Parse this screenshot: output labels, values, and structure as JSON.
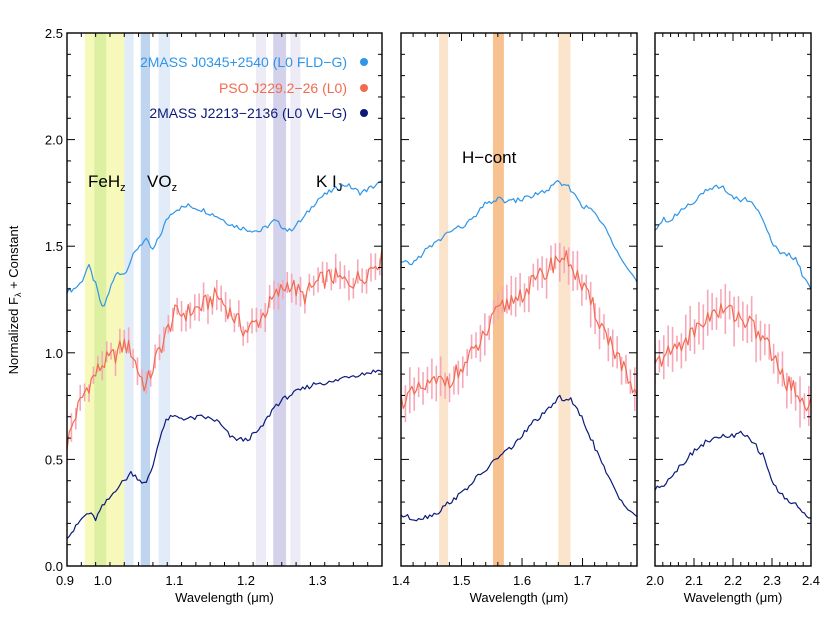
{
  "chart_data": {
    "type": "line",
    "ylabel_main": "Normalized F",
    "ylabel_sub": "λ",
    "ylabel_tail": " + Constant",
    "xlabel_main": "Wavelength (",
    "xlabel_unit": "μm",
    "xlabel_tail": ")",
    "ylim": [
      0.0,
      2.5
    ],
    "yticks": [
      "0.0",
      "0.5",
      "1.0",
      "1.5",
      "2.0",
      "2.5"
    ],
    "series": [
      {
        "name": "2MASS J0345+2540 (L0 FLD−G)",
        "color": "#2f95e8"
      },
      {
        "name": "PSO J229.2−26 (L0)",
        "color": "#f26b4f",
        "error_color": "#f7a8b8"
      },
      {
        "name": "2MASS J2213−2136 (L0 VL−G)",
        "color": "#0c1a7a"
      }
    ],
    "feature_labels": {
      "feh": {
        "main": "FeH",
        "sub": "z"
      },
      "vo": {
        "main": "VO",
        "sub": "z"
      },
      "ki": {
        "main": "K I",
        "sub": "J"
      },
      "hcont": {
        "main": "H−cont"
      }
    },
    "panels": [
      {
        "band": "J",
        "xlim": [
          0.95,
          1.39
        ],
        "xticks": [
          "0.9",
          "1.0",
          "1.1",
          "1.2",
          "1.3"
        ],
        "xtick_values": [
          0.9,
          1.0,
          1.1,
          1.2,
          1.3
        ],
        "bands": [
          {
            "x0": 0.975,
            "x1": 0.988,
            "color": "#f4f7a8",
            "alpha": 0.8
          },
          {
            "x0": 0.988,
            "x1": 1.005,
            "color": "#d7ec8f",
            "alpha": 0.85
          },
          {
            "x0": 1.005,
            "x1": 1.016,
            "color": "#f4f7a8",
            "alpha": 0.8
          },
          {
            "x0": 1.016,
            "x1": 1.03,
            "color": "#f4f7a8",
            "alpha": 0.8
          },
          {
            "x0": 1.03,
            "x1": 1.043,
            "color": "#dfeaf8",
            "alpha": 0.9
          },
          {
            "x0": 1.053,
            "x1": 1.066,
            "color": "#bcd3ee",
            "alpha": 0.95
          },
          {
            "x0": 1.078,
            "x1": 1.094,
            "color": "#dfeaf8",
            "alpha": 0.9
          },
          {
            "x0": 1.214,
            "x1": 1.228,
            "color": "#ecebf6",
            "alpha": 1
          },
          {
            "x0": 1.238,
            "x1": 1.256,
            "color": "#d3d2ea",
            "alpha": 1
          },
          {
            "x0": 1.262,
            "x1": 1.276,
            "color": "#ecebf6",
            "alpha": 1
          }
        ],
        "series": [
          {
            "series_index": 0,
            "x": [
              0.95,
              0.96,
              0.97,
              0.98,
              0.99,
              1.0,
              1.01,
              1.02,
              1.03,
              1.04,
              1.05,
              1.06,
              1.07,
              1.08,
              1.09,
              1.1,
              1.12,
              1.14,
              1.16,
              1.18,
              1.2,
              1.22,
              1.24,
              1.26,
              1.28,
              1.3,
              1.32,
              1.34,
              1.36,
              1.39
            ],
            "y": [
              1.29,
              1.3,
              1.33,
              1.41,
              1.32,
              1.2,
              1.3,
              1.38,
              1.37,
              1.44,
              1.5,
              1.53,
              1.48,
              1.55,
              1.63,
              1.67,
              1.69,
              1.67,
              1.64,
              1.6,
              1.58,
              1.57,
              1.62,
              1.57,
              1.63,
              1.72,
              1.76,
              1.79,
              1.75,
              1.8
            ]
          },
          {
            "series_index": 1,
            "x": [
              0.95,
              0.96,
              0.97,
              0.98,
              0.99,
              1.0,
              1.01,
              1.02,
              1.03,
              1.04,
              1.05,
              1.06,
              1.07,
              1.08,
              1.09,
              1.1,
              1.12,
              1.14,
              1.16,
              1.18,
              1.2,
              1.22,
              1.24,
              1.26,
              1.28,
              1.3,
              1.32,
              1.34,
              1.36,
              1.39
            ],
            "y": [
              0.57,
              0.69,
              0.78,
              0.85,
              0.9,
              0.95,
              0.97,
              1.0,
              1.04,
              1.01,
              0.91,
              0.84,
              0.93,
              1.02,
              1.1,
              1.18,
              1.19,
              1.22,
              1.27,
              1.18,
              1.1,
              1.16,
              1.26,
              1.33,
              1.26,
              1.33,
              1.36,
              1.33,
              1.35,
              1.45
            ],
            "err": 0.06
          },
          {
            "series_index": 2,
            "x": [
              0.95,
              0.96,
              0.97,
              0.98,
              0.99,
              1.0,
              1.01,
              1.02,
              1.03,
              1.04,
              1.05,
              1.06,
              1.07,
              1.08,
              1.09,
              1.1,
              1.12,
              1.14,
              1.16,
              1.18,
              1.2,
              1.22,
              1.24,
              1.26,
              1.28,
              1.3,
              1.32,
              1.34,
              1.36,
              1.39
            ],
            "y": [
              0.14,
              0.17,
              0.22,
              0.25,
              0.22,
              0.28,
              0.32,
              0.37,
              0.4,
              0.44,
              0.41,
              0.38,
              0.47,
              0.61,
              0.69,
              0.7,
              0.69,
              0.7,
              0.68,
              0.6,
              0.59,
              0.64,
              0.75,
              0.8,
              0.83,
              0.86,
              0.86,
              0.89,
              0.9,
              0.92
            ]
          }
        ]
      },
      {
        "band": "H",
        "xlim": [
          1.4,
          1.79
        ],
        "xticks": [
          "1.4",
          "1.5",
          "1.6",
          "1.7"
        ],
        "xtick_values": [
          1.4,
          1.5,
          1.6,
          1.7
        ],
        "bands": [
          {
            "x0": 1.463,
            "x1": 1.478,
            "color": "#fbe4cc",
            "alpha": 1
          },
          {
            "x0": 1.552,
            "x1": 1.57,
            "color": "#f7c190",
            "alpha": 1
          },
          {
            "x0": 1.66,
            "x1": 1.68,
            "color": "#fbe4cc",
            "alpha": 1
          }
        ],
        "series": [
          {
            "series_index": 0,
            "x": [
              1.4,
              1.42,
              1.44,
              1.46,
              1.48,
              1.5,
              1.52,
              1.54,
              1.56,
              1.58,
              1.6,
              1.62,
              1.64,
              1.66,
              1.68,
              1.7,
              1.72,
              1.74,
              1.76,
              1.79
            ],
            "y": [
              1.42,
              1.42,
              1.48,
              1.52,
              1.57,
              1.59,
              1.63,
              1.7,
              1.72,
              1.71,
              1.72,
              1.74,
              1.76,
              1.8,
              1.77,
              1.69,
              1.66,
              1.57,
              1.47,
              1.33
            ]
          },
          {
            "series_index": 1,
            "x": [
              1.4,
              1.42,
              1.44,
              1.46,
              1.48,
              1.5,
              1.52,
              1.54,
              1.56,
              1.58,
              1.6,
              1.62,
              1.64,
              1.66,
              1.68,
              1.7,
              1.72,
              1.74,
              1.76,
              1.79
            ],
            "y": [
              0.78,
              0.8,
              0.84,
              0.86,
              0.88,
              0.92,
              1.0,
              1.09,
              1.19,
              1.24,
              1.28,
              1.33,
              1.38,
              1.45,
              1.43,
              1.3,
              1.2,
              1.08,
              0.98,
              0.76
            ],
            "err": 0.09
          },
          {
            "series_index": 2,
            "x": [
              1.4,
              1.42,
              1.44,
              1.46,
              1.48,
              1.5,
              1.52,
              1.54,
              1.56,
              1.58,
              1.6,
              1.62,
              1.64,
              1.66,
              1.68,
              1.7,
              1.72,
              1.74,
              1.76,
              1.79
            ],
            "y": [
              0.24,
              0.22,
              0.23,
              0.25,
              0.3,
              0.34,
              0.4,
              0.45,
              0.51,
              0.55,
              0.61,
              0.68,
              0.72,
              0.79,
              0.78,
              0.69,
              0.56,
              0.43,
              0.32,
              0.23
            ]
          }
        ]
      },
      {
        "band": "K",
        "xlim": [
          2.0,
          2.4
        ],
        "xticks": [
          "2.0",
          "2.1",
          "2.2",
          "2.3",
          "2.4"
        ],
        "xtick_values": [
          2.0,
          2.1,
          2.2,
          2.3,
          2.4
        ],
        "bands": [],
        "series": [
          {
            "series_index": 0,
            "x": [
              2.0,
              2.02,
              2.04,
              2.06,
              2.08,
              2.1,
              2.12,
              2.14,
              2.16,
              2.18,
              2.2,
              2.22,
              2.24,
              2.26,
              2.28,
              2.3,
              2.32,
              2.34,
              2.36,
              2.38,
              2.4
            ],
            "y": [
              1.58,
              1.63,
              1.62,
              1.66,
              1.69,
              1.71,
              1.75,
              1.76,
              1.78,
              1.77,
              1.73,
              1.72,
              1.72,
              1.68,
              1.62,
              1.51,
              1.47,
              1.46,
              1.44,
              1.36,
              1.3
            ]
          },
          {
            "series_index": 1,
            "x": [
              2.0,
              2.02,
              2.04,
              2.06,
              2.08,
              2.1,
              2.12,
              2.14,
              2.16,
              2.18,
              2.2,
              2.22,
              2.24,
              2.26,
              2.28,
              2.3,
              2.32,
              2.34,
              2.36,
              2.38,
              2.4
            ],
            "y": [
              0.93,
              0.98,
              1.0,
              1.04,
              1.06,
              1.1,
              1.14,
              1.18,
              1.18,
              1.21,
              1.19,
              1.17,
              1.14,
              1.1,
              1.07,
              0.99,
              0.92,
              0.86,
              0.82,
              0.78,
              0.75
            ],
            "err": 0.1
          },
          {
            "series_index": 2,
            "x": [
              2.0,
              2.02,
              2.04,
              2.06,
              2.08,
              2.1,
              2.12,
              2.14,
              2.16,
              2.18,
              2.2,
              2.22,
              2.24,
              2.26,
              2.28,
              2.3,
              2.32,
              2.34,
              2.36,
              2.38,
              2.4
            ],
            "y": [
              0.36,
              0.38,
              0.42,
              0.46,
              0.5,
              0.54,
              0.57,
              0.59,
              0.6,
              0.61,
              0.61,
              0.62,
              0.6,
              0.56,
              0.51,
              0.4,
              0.34,
              0.31,
              0.29,
              0.25,
              0.22
            ]
          }
        ]
      }
    ]
  }
}
